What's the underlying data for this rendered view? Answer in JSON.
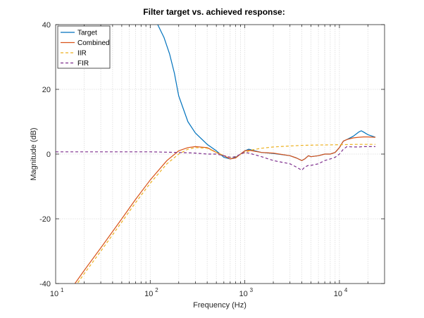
{
  "chart_data": {
    "type": "line",
    "title": "Filter target vs. achieved response:",
    "xlabel": "Frequency (Hz)",
    "ylabel": "Magnitude (dB)",
    "xscale": "log",
    "xlim": [
      10,
      30000
    ],
    "ylim": [
      -40,
      40
    ],
    "x_ticks": [
      {
        "base": "10",
        "exp": "1"
      },
      {
        "base": "10",
        "exp": "2"
      },
      {
        "base": "10",
        "exp": "3"
      },
      {
        "base": "10",
        "exp": "4"
      }
    ],
    "y_ticks": [
      "40",
      "20",
      "0",
      "-20",
      "-40"
    ],
    "grid": "on",
    "legend_location": "top-left",
    "series": [
      {
        "name": "Target",
        "color": "#0072bd",
        "dash": "solid",
        "x": [
          120,
          140,
          160,
          180,
          200,
          250,
          300,
          400,
          500,
          600,
          700,
          800,
          900,
          1000,
          1100,
          1200,
          1500,
          2000,
          3000,
          3500,
          4000,
          4300,
          4700,
          5000,
          6000,
          7000,
          8000,
          9000,
          10000,
          11000,
          12000,
          14000,
          16000,
          17000,
          18000,
          20000,
          24000
        ],
        "y": [
          40,
          36,
          31,
          25,
          18,
          10,
          6.5,
          3,
          1,
          -1,
          -1.5,
          -1,
          0,
          1,
          1.5,
          1.2,
          0.5,
          0.2,
          -0.5,
          -1.2,
          -2,
          -1.5,
          -0.5,
          -0.8,
          -0.5,
          0,
          0,
          0.5,
          2,
          4,
          4.5,
          5.5,
          6.8,
          7.2,
          6.8,
          6,
          5.2
        ]
      },
      {
        "name": "Combined",
        "color": "#d95319",
        "dash": "solid",
        "x": [
          16,
          20,
          30,
          50,
          70,
          100,
          150,
          200,
          250,
          300,
          400,
          500,
          600,
          700,
          800,
          900,
          1000,
          1100,
          1200,
          1500,
          2000,
          3000,
          3500,
          4000,
          4300,
          4700,
          5000,
          6000,
          7000,
          8000,
          9000,
          10000,
          11000,
          12000,
          14000,
          16000,
          18000,
          20000,
          24000
        ],
        "y": [
          -40,
          -36,
          -29,
          -20,
          -14,
          -8,
          -2,
          1,
          2,
          2.3,
          2,
          0.5,
          -0.5,
          -1.5,
          -1.2,
          0,
          1,
          1.2,
          1,
          0.5,
          0.3,
          -0.5,
          -1.2,
          -2,
          -1.5,
          -0.5,
          -0.8,
          -0.5,
          0,
          0,
          0.5,
          2,
          4,
          4.5,
          5,
          5.2,
          5.3,
          5.3,
          5.2
        ]
      },
      {
        "name": "IIR",
        "color": "#edb120",
        "dash": "dashed",
        "x": [
          16,
          20,
          30,
          50,
          70,
          100,
          150,
          200,
          250,
          300,
          400,
          500,
          600,
          700,
          800,
          1000,
          1200,
          1500,
          2000,
          3000,
          4000,
          6000,
          10000,
          15000,
          24000
        ],
        "y": [
          -41,
          -37,
          -30,
          -21,
          -15,
          -9,
          -3,
          0,
          1.5,
          2,
          1.8,
          0.5,
          -0.5,
          -1,
          -0.8,
          0.5,
          1.3,
          1.8,
          2.2,
          2.5,
          2.7,
          2.8,
          2.9,
          3,
          3
        ]
      },
      {
        "name": "FIR",
        "color": "#7e2f8e",
        "dash": "dashed",
        "x": [
          10,
          50,
          100,
          200,
          300,
          400,
          500,
          600,
          700,
          800,
          900,
          1000,
          1100,
          1200,
          1500,
          2000,
          3000,
          3500,
          4000,
          4300,
          4700,
          5000,
          6000,
          7000,
          8000,
          9000,
          10000,
          11000,
          12000,
          14000,
          16000,
          18000,
          20000,
          24000
        ],
        "y": [
          0.7,
          0.7,
          0.7,
          0.5,
          0.3,
          0,
          0,
          -0.5,
          -1,
          -0.8,
          0,
          0.5,
          0.3,
          0,
          -0.8,
          -2,
          -3,
          -4,
          -5,
          -4,
          -3.5,
          -3.5,
          -3,
          -2,
          -1.5,
          -1,
          0,
          1.5,
          2.3,
          2.2,
          2.2,
          2.3,
          2.3,
          2.3
        ]
      }
    ]
  }
}
